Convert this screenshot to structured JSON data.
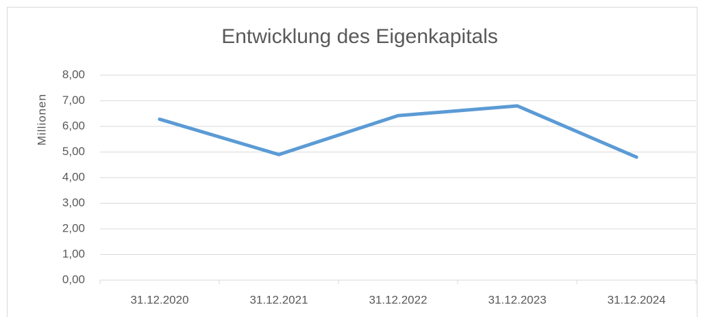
{
  "chart_data": {
    "type": "line",
    "title": "Entwicklung des Eigenkapitals",
    "y_label": "Millionen",
    "categories": [
      "31.12.2020",
      "31.12.2021",
      "31.12.2022",
      "31.12.2023",
      "31.12.2024"
    ],
    "series": [
      {
        "name": "Eigenkapital",
        "color": "#5b9bd5",
        "values": [
          6.28,
          4.9,
          6.42,
          6.8,
          4.8
        ]
      }
    ],
    "ylim": [
      0,
      8
    ],
    "yticks": [
      {
        "value": 0,
        "label": "0,00"
      },
      {
        "value": 1,
        "label": "1,00"
      },
      {
        "value": 2,
        "label": "2,00"
      },
      {
        "value": 3,
        "label": "3,00"
      },
      {
        "value": 4,
        "label": "4,00"
      },
      {
        "value": 5,
        "label": "5,00"
      },
      {
        "value": 6,
        "label": "6,00"
      },
      {
        "value": 7,
        "label": "7,00"
      },
      {
        "value": 8,
        "label": "8,00"
      }
    ],
    "grid": true
  }
}
